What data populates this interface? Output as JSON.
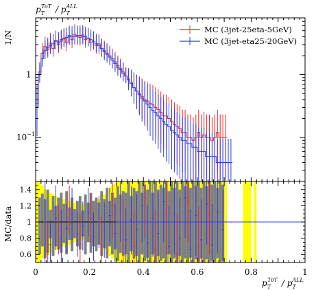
{
  "chart_data": [
    {
      "type": "histogram",
      "panel": "main",
      "title": "p_T^{ToT} / p_T^{ALL}",
      "ylabel": "1/N",
      "yscale": "log",
      "ylim": [
        0.02,
        8
      ],
      "xlim": [
        0,
        1
      ],
      "ytick_labels": [
        "1",
        "10^{-1}"
      ],
      "ytick_values": [
        1,
        0.1
      ],
      "grid": false,
      "legend_position": "top-right",
      "series": [
        {
          "name": "MC (3jet-25eta-5GeV)",
          "color": "#e8262b",
          "x": [
            0.005,
            0.015,
            0.025,
            0.035,
            0.045,
            0.055,
            0.065,
            0.075,
            0.085,
            0.095,
            0.105,
            0.115,
            0.125,
            0.135,
            0.145,
            0.155,
            0.165,
            0.175,
            0.185,
            0.195,
            0.205,
            0.215,
            0.225,
            0.235,
            0.245,
            0.255,
            0.265,
            0.275,
            0.285,
            0.295,
            0.305,
            0.315,
            0.325,
            0.335,
            0.345,
            0.355,
            0.365,
            0.375,
            0.385,
            0.395,
            0.405,
            0.415,
            0.425,
            0.435,
            0.445,
            0.455,
            0.465,
            0.475,
            0.485,
            0.495,
            0.505,
            0.515,
            0.525,
            0.535,
            0.545,
            0.555,
            0.565,
            0.575,
            0.585,
            0.595,
            0.605,
            0.615,
            0.625,
            0.635,
            0.645,
            0.655,
            0.665,
            0.675,
            0.685,
            0.695,
            0.705
          ],
          "y": [
            0.35,
            1.1,
            2.2,
            2.8,
            2.5,
            3.2,
            2.6,
            3.5,
            3.0,
            3.4,
            3.8,
            3.2,
            4.2,
            3.6,
            4.4,
            4.0,
            3.9,
            4.3,
            3.6,
            3.8,
            3.2,
            3.4,
            2.9,
            3.1,
            2.6,
            2.4,
            2.2,
            2.0,
            1.8,
            1.6,
            1.4,
            1.25,
            1.1,
            0.95,
            0.85,
            0.75,
            0.62,
            0.55,
            0.5,
            0.45,
            0.4,
            0.38,
            0.35,
            0.33,
            0.3,
            0.28,
            0.25,
            0.22,
            0.22,
            0.2,
            0.18,
            0.16,
            0.15,
            0.14,
            0.12,
            0.12,
            0.1,
            0.1,
            0.09,
            0.1,
            0.12,
            0.1,
            0.11,
            0.1,
            0.1,
            0.09,
            0.1,
            0.12,
            0.1,
            0.1,
            0.1
          ]
        },
        {
          "name": "MC (3jet-eta25-20GeV)",
          "color": "#2a3ee8",
          "x": [
            0.005,
            0.015,
            0.025,
            0.035,
            0.045,
            0.055,
            0.065,
            0.075,
            0.085,
            0.095,
            0.105,
            0.115,
            0.125,
            0.135,
            0.145,
            0.155,
            0.165,
            0.175,
            0.185,
            0.195,
            0.205,
            0.215,
            0.225,
            0.235,
            0.245,
            0.255,
            0.265,
            0.275,
            0.285,
            0.295,
            0.305,
            0.315,
            0.325,
            0.335,
            0.345,
            0.355,
            0.365,
            0.375,
            0.385,
            0.395,
            0.405,
            0.415,
            0.425,
            0.435,
            0.445,
            0.455,
            0.465,
            0.475,
            0.485,
            0.495,
            0.505,
            0.515,
            0.525,
            0.535,
            0.545,
            0.555,
            0.565,
            0.575,
            0.585,
            0.595,
            0.605,
            0.615,
            0.625,
            0.635,
            0.645,
            0.655,
            0.665,
            0.675,
            0.685,
            0.695,
            0.705,
            0.715,
            0.725
          ],
          "y": [
            0.3,
            1.0,
            1.8,
            2.4,
            2.7,
            2.9,
            3.1,
            3.4,
            3.3,
            3.6,
            3.7,
            3.9,
            4.0,
            4.1,
            4.1,
            4.2,
            4.2,
            4.1,
            4.0,
            3.8,
            3.6,
            3.4,
            3.1,
            2.9,
            2.6,
            2.3,
            2.1,
            1.9,
            1.7,
            1.5,
            1.3,
            1.2,
            1.05,
            0.95,
            0.82,
            0.72,
            0.62,
            0.55,
            0.48,
            0.42,
            0.38,
            0.34,
            0.3,
            0.27,
            0.25,
            0.22,
            0.2,
            0.18,
            0.16,
            0.15,
            0.13,
            0.12,
            0.11,
            0.1,
            0.09,
            0.09,
            0.08,
            0.08,
            0.07,
            0.07,
            0.06,
            0.06,
            0.06,
            0.05,
            0.05,
            0.05,
            0.05,
            0.04,
            0.04,
            0.04,
            0.04,
            0.04,
            0.04
          ]
        }
      ],
      "legend": [
        "MC (3jet-25eta-5GeV)",
        "MC (3jet-eta25-20GeV)"
      ]
    },
    {
      "type": "ratio",
      "panel": "ratio",
      "ylabel": "MC/data",
      "xlabel": "p_T^{ToT} / p_T^{ALL}",
      "xlim": [
        0,
        1
      ],
      "ylim": [
        0.5,
        1.5
      ],
      "ytick_labels": [
        "0.6",
        "0.8",
        "1",
        "1.2",
        "1.4"
      ],
      "ytick_values": [
        0.6,
        0.8,
        1.0,
        1.2,
        1.4
      ],
      "xtick_labels": [
        "0",
        "0.2",
        "0.4",
        "0.6",
        "0.8",
        "1"
      ],
      "xtick_values": [
        0,
        0.2,
        0.4,
        0.6,
        0.8,
        1.0
      ],
      "reference_line": 1.0,
      "bands": [
        {
          "name": "yellow-uncertainty",
          "color": "#ffff00",
          "x": [
            0.005,
            0.015,
            0.025,
            0.035,
            0.045,
            0.055,
            0.065,
            0.075,
            0.085,
            0.095,
            0.105,
            0.115,
            0.125,
            0.135,
            0.145,
            0.155,
            0.165,
            0.175,
            0.185,
            0.195,
            0.205,
            0.215,
            0.225,
            0.235,
            0.245,
            0.255,
            0.265,
            0.275,
            0.285,
            0.295,
            0.305,
            0.315,
            0.325,
            0.335,
            0.345,
            0.355,
            0.365,
            0.375,
            0.385,
            0.395,
            0.405,
            0.415,
            0.425,
            0.435,
            0.445,
            0.455,
            0.465,
            0.475,
            0.485,
            0.495,
            0.505,
            0.515,
            0.525,
            0.535,
            0.545,
            0.555,
            0.565,
            0.575,
            0.585,
            0.595,
            0.605,
            0.615,
            0.625,
            0.635,
            0.645,
            0.655,
            0.665,
            0.675,
            0.685,
            0.695,
            0.705,
            0.775,
            0.785,
            0.795,
            0.815
          ],
          "low": [
            0.5,
            0.5,
            0.55,
            0.6,
            0.6,
            0.62,
            0.65,
            0.66,
            0.68,
            0.7,
            0.7,
            0.72,
            0.72,
            0.74,
            0.75,
            0.76,
            0.76,
            0.78,
            0.78,
            0.78,
            0.78,
            0.76,
            0.75,
            0.72,
            0.7,
            0.66,
            0.62,
            0.58,
            0.55,
            0.52,
            0.5,
            0.5,
            0.5,
            0.5,
            0.5,
            0.5,
            0.5,
            0.5,
            0.5,
            0.5,
            0.5,
            0.5,
            0.5,
            0.5,
            0.5,
            0.5,
            0.5,
            0.5,
            0.5,
            0.5,
            0.5,
            0.5,
            0.5,
            0.5,
            0.5,
            0.5,
            0.5,
            0.5,
            0.5,
            0.5,
            0.5,
            0.5,
            0.5,
            0.5,
            0.5,
            0.5,
            0.5,
            0.5,
            0.5,
            0.5,
            0.5,
            0.5,
            0.5,
            0.5,
            0.5
          ],
          "high": [
            1.5,
            1.5,
            1.45,
            1.4,
            1.38,
            1.36,
            1.34,
            1.32,
            1.3,
            1.28,
            1.28,
            1.26,
            1.26,
            1.25,
            1.24,
            1.23,
            1.22,
            1.22,
            1.22,
            1.22,
            1.22,
            1.24,
            1.26,
            1.28,
            1.3,
            1.34,
            1.38,
            1.42,
            1.45,
            1.48,
            1.5,
            1.5,
            1.5,
            1.5,
            1.5,
            1.5,
            1.5,
            1.5,
            1.5,
            1.5,
            1.5,
            1.5,
            1.5,
            1.5,
            1.5,
            1.5,
            1.5,
            1.5,
            1.5,
            1.5,
            1.5,
            1.5,
            1.5,
            1.5,
            1.5,
            1.5,
            1.5,
            1.5,
            1.5,
            1.5,
            1.5,
            1.5,
            1.5,
            1.5,
            1.5,
            1.5,
            1.5,
            1.5,
            1.5,
            1.5,
            1.5,
            1.5,
            1.5,
            1.5,
            1.5
          ]
        },
        {
          "name": "grey-uncertainty",
          "color": "#808080",
          "x": [
            0.015,
            0.025,
            0.035,
            0.045,
            0.055,
            0.065,
            0.075,
            0.085,
            0.095,
            0.105,
            0.115,
            0.125,
            0.135,
            0.145,
            0.155,
            0.165,
            0.175,
            0.185,
            0.195,
            0.205,
            0.215,
            0.225,
            0.235,
            0.245,
            0.255,
            0.265,
            0.275,
            0.285,
            0.295,
            0.305,
            0.315,
            0.325,
            0.335,
            0.345,
            0.355,
            0.365,
            0.375,
            0.385,
            0.395,
            0.405,
            0.415,
            0.425,
            0.435,
            0.445,
            0.455,
            0.465,
            0.475,
            0.485,
            0.495,
            0.505,
            0.515,
            0.525,
            0.535,
            0.545,
            0.555,
            0.565,
            0.575,
            0.585,
            0.595,
            0.605,
            0.615,
            0.625,
            0.635,
            0.645,
            0.655,
            0.665,
            0.675,
            0.685,
            0.695
          ],
          "low": [
            0.6,
            0.7,
            0.55,
            0.62,
            0.8,
            0.58,
            0.7,
            0.66,
            0.62,
            0.74,
            0.6,
            0.78,
            0.64,
            0.8,
            0.7,
            0.66,
            0.82,
            0.6,
            0.75,
            0.62,
            0.7,
            0.64,
            0.72,
            0.58,
            0.68,
            0.55,
            0.7,
            0.6,
            0.66,
            0.52,
            0.62,
            0.58,
            0.6,
            0.5,
            0.64,
            0.55,
            0.58,
            0.5,
            0.6,
            0.52,
            0.56,
            0.5,
            0.6,
            0.5,
            0.58,
            0.52,
            0.55,
            0.5,
            0.6,
            0.5,
            0.55,
            0.5,
            0.58,
            0.5,
            0.55,
            0.5,
            0.56,
            0.5,
            0.54,
            0.5,
            0.55,
            0.5,
            0.54,
            0.5,
            0.52,
            0.5,
            0.55,
            0.5,
            0.52
          ],
          "high": [
            1.3,
            1.35,
            1.28,
            1.4,
            1.15,
            1.32,
            1.2,
            1.3,
            1.36,
            1.22,
            1.38,
            1.18,
            1.3,
            1.16,
            1.26,
            1.32,
            1.14,
            1.34,
            1.24,
            1.36,
            1.26,
            1.3,
            1.24,
            1.38,
            1.28,
            1.42,
            1.26,
            1.36,
            1.3,
            1.44,
            1.34,
            1.38,
            1.36,
            1.5,
            1.32,
            1.42,
            1.38,
            1.5,
            1.36,
            1.46,
            1.4,
            1.5,
            1.36,
            1.5,
            1.4,
            1.46,
            1.42,
            1.5,
            1.38,
            1.5,
            1.42,
            1.5,
            1.4,
            1.5,
            1.44,
            1.5,
            1.42,
            1.5,
            1.44,
            1.5,
            1.42,
            1.5,
            1.44,
            1.5,
            1.46,
            1.5,
            1.42,
            1.5,
            1.46
          ]
        }
      ],
      "series": [
        {
          "name": "MC (3jet-eta25-20GeV)",
          "color": "#2a3ee8",
          "x": [
            0.035,
            0.055,
            0.075,
            0.095,
            0.115,
            0.135,
            0.155,
            0.175,
            0.195,
            0.215,
            0.235,
            0.255,
            0.275,
            0.295,
            0.315,
            0.335,
            0.355,
            0.375,
            0.395,
            0.415,
            0.435,
            0.455,
            0.475,
            0.495,
            0.515,
            0.535,
            0.555,
            0.575,
            0.595,
            0.615,
            0.635,
            0.655,
            0.675,
            0.695
          ],
          "y": [
            1.0,
            0.72,
            1.05,
            0.8,
            0.92,
            1.1,
            0.85,
            0.95,
            1.12,
            0.82,
            1.0,
            0.9,
            1.08,
            0.86,
            1.15,
            0.78,
            1.02,
            0.9,
            1.2,
            0.74,
            1.05,
            0.86,
            1.25,
            0.7,
            1.1,
            0.8,
            1.3,
            0.66,
            1.08,
            0.78,
            1.22,
            0.72,
            1.12,
            0.9
          ],
          "err": [
            0.5,
            0.3,
            0.4,
            0.35,
            0.3,
            0.32,
            0.28,
            0.3,
            0.3,
            0.3,
            0.32,
            0.34,
            0.34,
            0.36,
            0.4,
            0.4,
            0.42,
            0.44,
            0.46,
            0.46,
            0.48,
            0.5,
            0.5,
            0.5,
            0.5,
            0.5,
            0.5,
            0.5,
            0.5,
            0.5,
            0.5,
            0.5,
            0.5,
            0.5
          ]
        },
        {
          "name": "MC (3jet-25eta-5GeV)",
          "color": "#e8262b",
          "x": [
            0.045,
            0.085,
            0.125,
            0.165,
            0.205,
            0.245,
            0.285,
            0.325,
            0.365,
            0.405,
            0.445,
            0.485,
            0.525,
            0.565,
            0.605,
            0.645
          ],
          "y": [
            0.6,
            0.9,
            1.15,
            0.8,
            1.05,
            0.72,
            1.2,
            0.88,
            0.7,
            1.3,
            0.65,
            1.1,
            0.6,
            1.25,
            0.7,
            1.1
          ],
          "err": [
            0.4,
            0.3,
            0.3,
            0.3,
            0.3,
            0.35,
            0.4,
            0.4,
            0.45,
            0.5,
            0.5,
            0.5,
            0.5,
            0.5,
            0.5,
            0.5
          ]
        }
      ]
    }
  ]
}
